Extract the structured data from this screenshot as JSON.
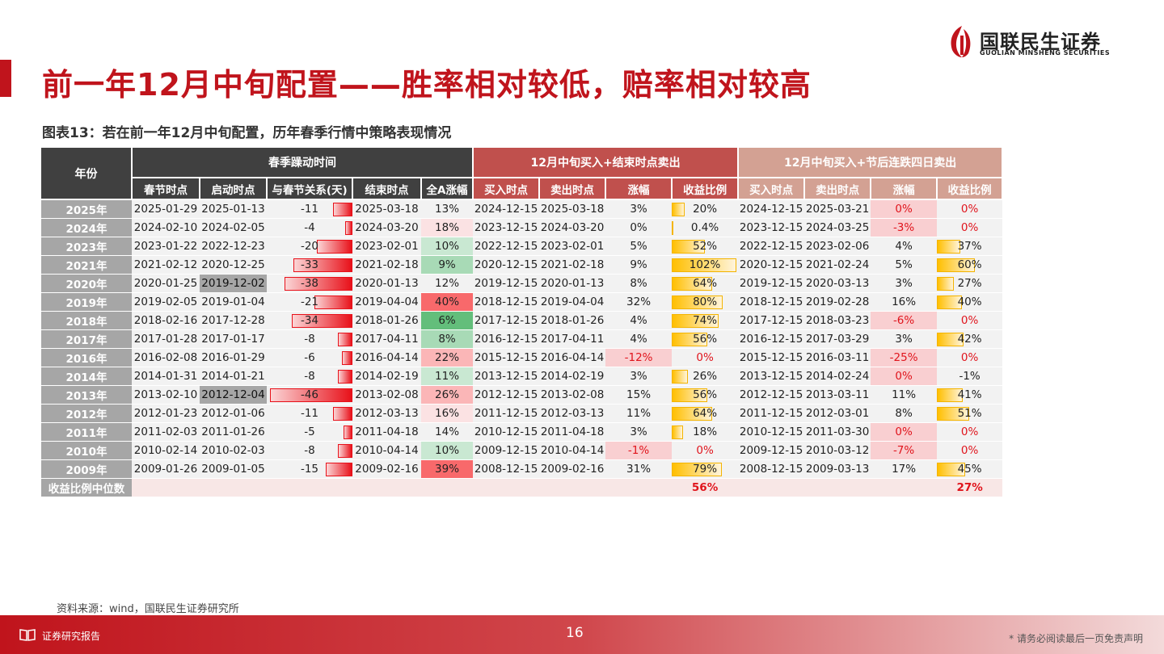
{
  "title": "前一年12月中旬配置——胜率相对较低，赔率相对较高",
  "logo": {
    "cn": "国联民生证券",
    "en": "GUOLIAN MINSHENG SECURITIES"
  },
  "subtitle": "图表13：若在前一年12月中旬配置，历年春季行情中策略表现情况",
  "table": {
    "header_year": "年份",
    "group1": "春季躁动时间",
    "group2": "12月中旬买入+结束时点卖出",
    "group3": "12月中旬买入+节后连跌四日卖出",
    "cols": [
      "春节时点",
      "启动时点",
      "与春节关系(天)",
      "结束时点",
      "全A涨幅",
      "买入时点",
      "卖出时点",
      "涨幅",
      "收益比例",
      "买入时点",
      "卖出时点",
      "涨幅",
      "收益比例"
    ],
    "rows": [
      [
        "2025年",
        "2025-01-29",
        "2025-01-13",
        "-11",
        "2025-03-18",
        "13%",
        "2024-12-15",
        "2025-03-18",
        "3%",
        "20%",
        "2024-12-15",
        "2025-03-21",
        "0%",
        "0%"
      ],
      [
        "2024年",
        "2024-02-10",
        "2024-02-05",
        "-4",
        "2024-03-20",
        "18%",
        "2023-12-15",
        "2024-03-20",
        "0%",
        "0.4%",
        "2023-12-15",
        "2024-03-25",
        "-3%",
        "0%"
      ],
      [
        "2023年",
        "2023-01-22",
        "2022-12-23",
        "-20",
        "2023-02-01",
        "10%",
        "2022-12-15",
        "2023-02-01",
        "5%",
        "52%",
        "2022-12-15",
        "2023-02-06",
        "4%",
        "37%"
      ],
      [
        "2021年",
        "2021-02-12",
        "2020-12-25",
        "-33",
        "2021-02-18",
        "9%",
        "2020-12-15",
        "2021-02-18",
        "9%",
        "102%",
        "2020-12-15",
        "2021-02-24",
        "5%",
        "60%"
      ],
      [
        "2020年",
        "2020-01-25",
        "2019-12-02",
        "-38",
        "2020-01-13",
        "12%",
        "2019-12-15",
        "2020-01-13",
        "8%",
        "64%",
        "2019-12-15",
        "2020-03-13",
        "3%",
        "27%"
      ],
      [
        "2019年",
        "2019-02-05",
        "2019-01-04",
        "-21",
        "2019-04-04",
        "40%",
        "2018-12-15",
        "2019-04-04",
        "32%",
        "80%",
        "2018-12-15",
        "2019-02-28",
        "16%",
        "40%"
      ],
      [
        "2018年",
        "2018-02-16",
        "2017-12-28",
        "-34",
        "2018-01-26",
        "6%",
        "2017-12-15",
        "2018-01-26",
        "4%",
        "74%",
        "2017-12-15",
        "2018-03-23",
        "-6%",
        "0%"
      ],
      [
        "2017年",
        "2017-01-28",
        "2017-01-17",
        "-8",
        "2017-04-11",
        "8%",
        "2016-12-15",
        "2017-04-11",
        "4%",
        "56%",
        "2016-12-15",
        "2017-03-29",
        "3%",
        "42%"
      ],
      [
        "2016年",
        "2016-02-08",
        "2016-01-29",
        "-6",
        "2016-04-14",
        "22%",
        "2015-12-15",
        "2016-04-14",
        "-12%",
        "0%",
        "2015-12-15",
        "2016-03-11",
        "-25%",
        "0%"
      ],
      [
        "2014年",
        "2014-01-31",
        "2014-01-21",
        "-8",
        "2014-02-19",
        "11%",
        "2013-12-15",
        "2014-02-19",
        "3%",
        "26%",
        "2013-12-15",
        "2014-02-24",
        "0%",
        "-1%"
      ],
      [
        "2013年",
        "2013-02-10",
        "2012-12-04",
        "-46",
        "2013-02-08",
        "26%",
        "2012-12-15",
        "2013-02-08",
        "15%",
        "56%",
        "2012-12-15",
        "2013-03-11",
        "11%",
        "41%"
      ],
      [
        "2012年",
        "2012-01-23",
        "2012-01-06",
        "-11",
        "2012-03-13",
        "16%",
        "2011-12-15",
        "2012-03-13",
        "11%",
        "64%",
        "2011-12-15",
        "2012-03-01",
        "8%",
        "51%"
      ],
      [
        "2011年",
        "2011-02-03",
        "2011-01-26",
        "-5",
        "2011-04-18",
        "14%",
        "2010-12-15",
        "2011-04-18",
        "3%",
        "18%",
        "2010-12-15",
        "2011-03-30",
        "0%",
        "0%"
      ],
      [
        "2010年",
        "2010-02-14",
        "2010-02-03",
        "-8",
        "2010-04-14",
        "10%",
        "2009-12-15",
        "2010-04-14",
        "-1%",
        "0%",
        "2009-12-15",
        "2010-03-12",
        "-7%",
        "0%"
      ],
      [
        "2009年",
        "2009-01-26",
        "2009-01-05",
        "-15",
        "2009-02-16",
        "39%",
        "2008-12-15",
        "2009-02-16",
        "31%",
        "79%",
        "2008-12-15",
        "2009-03-13",
        "17%",
        "45%"
      ]
    ],
    "days_values": [
      -11,
      -4,
      -20,
      -33,
      -38,
      -21,
      -34,
      -8,
      -6,
      -8,
      -46,
      -11,
      -5,
      -8,
      -15
    ],
    "gain_values": [
      13,
      18,
      10,
      9,
      12,
      40,
      6,
      8,
      22,
      11,
      26,
      16,
      14,
      10,
      39
    ],
    "ratio1_values": [
      20,
      0.4,
      52,
      102,
      64,
      80,
      74,
      56,
      0,
      26,
      56,
      64,
      18,
      0,
      79
    ],
    "ratio2_values": [
      0,
      0,
      37,
      60,
      27,
      40,
      0,
      42,
      0,
      -1,
      41,
      51,
      0,
      0,
      45
    ],
    "median_label": "收益比例中位数",
    "median1": "56%",
    "median2": "27%",
    "colors": {
      "accent": "#c0141c",
      "neg_bar": "#e8111a",
      "pos_bar": "#ffbf00",
      "green": "#63be7b",
      "red_cell": "#f8696b"
    }
  },
  "source": "资料来源：wind，国联民生证券研究所",
  "footer": {
    "left": "证券研究报告",
    "page": "16",
    "right": "* 请务必阅读最后一页免责声明"
  }
}
